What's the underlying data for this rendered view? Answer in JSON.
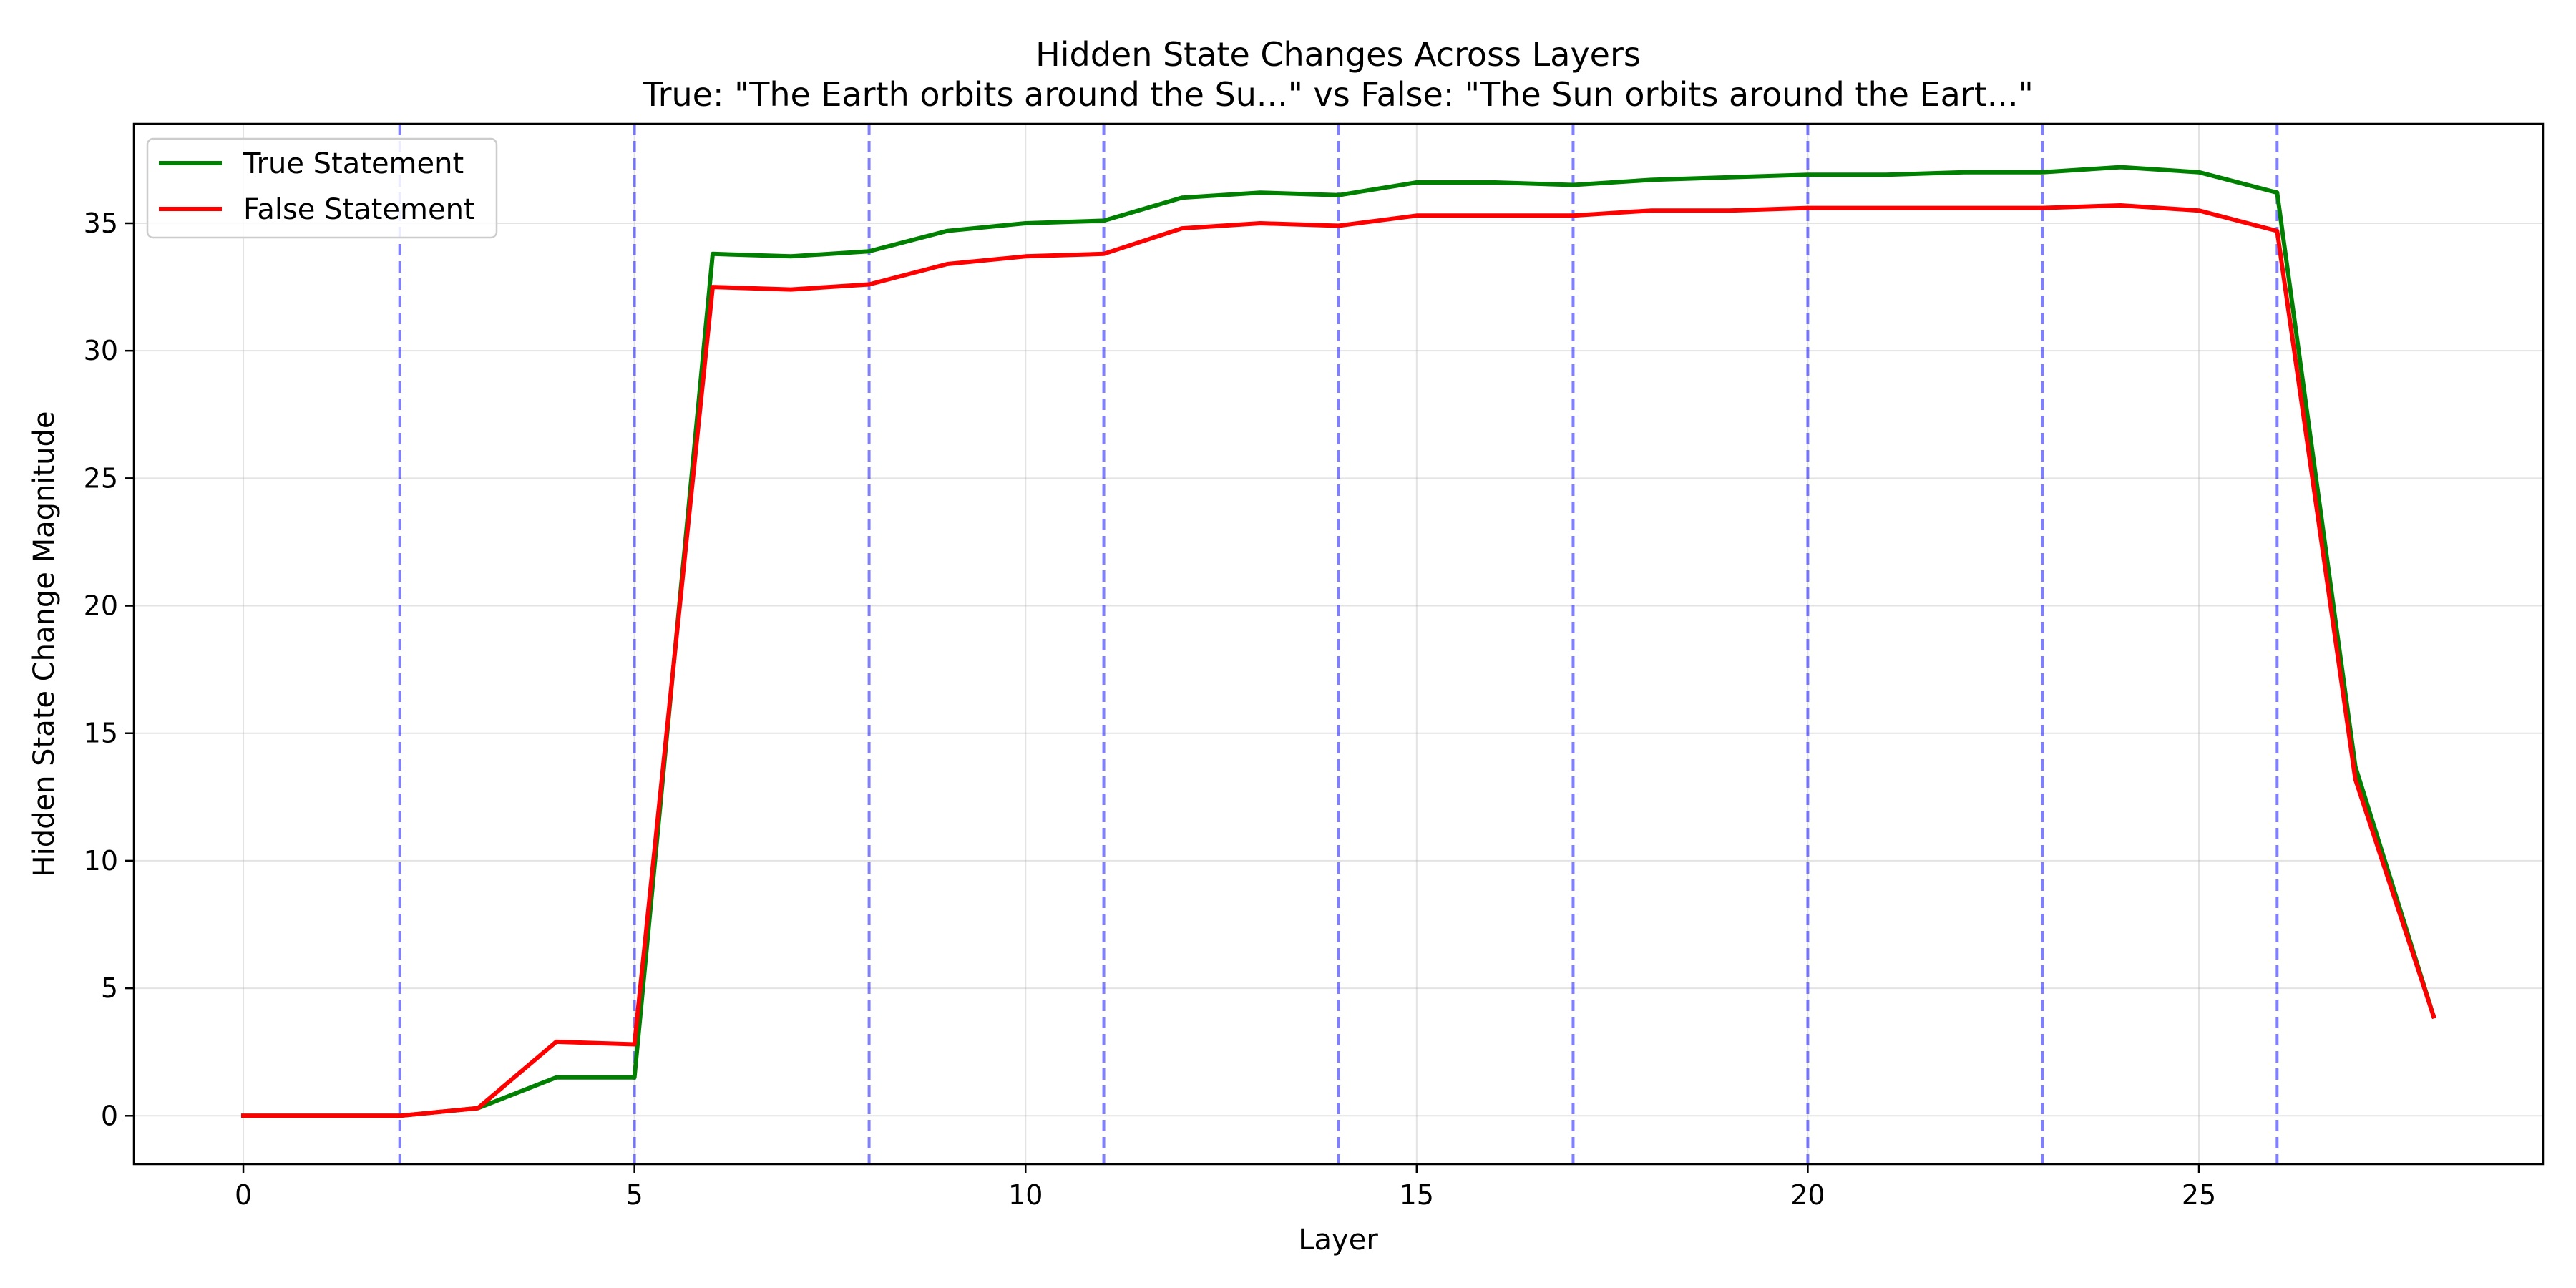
{
  "chart_data": {
    "type": "line",
    "title": "Hidden State Changes Across Layers",
    "subtitle": "True: \"The Earth orbits around the Su...\" vs False: \"The Sun orbits around the Eart...\"",
    "xlabel": "Layer",
    "ylabel": "Hidden State Change Magnitude",
    "xlim": [
      -1.4,
      29.4
    ],
    "ylim": [
      -1.9,
      38.9
    ],
    "xticks": [
      0,
      5,
      10,
      15,
      20,
      25
    ],
    "yticks": [
      0,
      5,
      10,
      15,
      20,
      25,
      30,
      35
    ],
    "grid": true,
    "legend_position": "upper-left",
    "x": [
      0,
      1,
      2,
      3,
      4,
      5,
      6,
      7,
      8,
      9,
      10,
      11,
      12,
      13,
      14,
      15,
      16,
      17,
      18,
      19,
      20,
      21,
      22,
      23,
      24,
      25,
      26,
      27,
      28
    ],
    "series": [
      {
        "name": "True Statement",
        "color": "#008000",
        "values": [
          0,
          0,
          0,
          0.3,
          1.5,
          1.5,
          33.8,
          33.7,
          33.9,
          34.7,
          35.0,
          35.1,
          36.0,
          36.2,
          36.1,
          36.6,
          36.6,
          36.5,
          36.7,
          36.8,
          36.9,
          36.9,
          37.0,
          37.0,
          37.2,
          37.0,
          36.2,
          13.7,
          3.9
        ]
      },
      {
        "name": "False Statement",
        "color": "#ff0000",
        "values": [
          0,
          0,
          0,
          0.3,
          2.9,
          2.8,
          32.5,
          32.4,
          32.6,
          33.4,
          33.7,
          33.8,
          34.8,
          35.0,
          34.9,
          35.3,
          35.3,
          35.3,
          35.5,
          35.5,
          35.6,
          35.6,
          35.6,
          35.6,
          35.7,
          35.5,
          34.7,
          13.2,
          3.9
        ]
      }
    ],
    "vlines": {
      "x": [
        2,
        5,
        8,
        11,
        14,
        17,
        20,
        23,
        26
      ],
      "color": "#0000ff",
      "style": "dashed"
    }
  }
}
